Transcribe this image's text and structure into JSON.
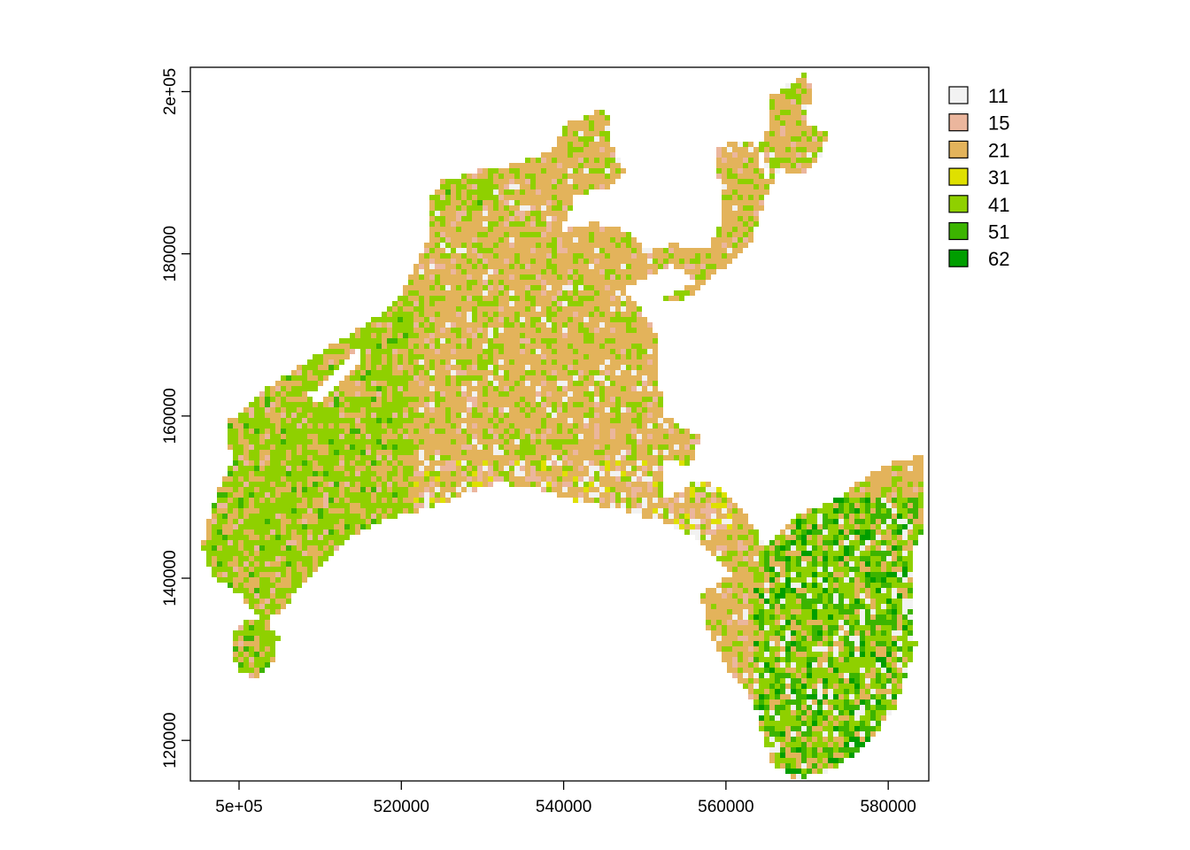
{
  "chart_data": {
    "type": "heatmap",
    "title": "",
    "xlabel": "",
    "ylabel": "",
    "xlim": [
      494000,
      585000
    ],
    "ylim": [
      115000,
      203000
    ],
    "x_ticks": [
      {
        "value": 500000,
        "label": "5e+05"
      },
      {
        "value": 520000,
        "label": "520000"
      },
      {
        "value": 540000,
        "label": "540000"
      },
      {
        "value": 560000,
        "label": "560000"
      },
      {
        "value": 580000,
        "label": "580000"
      }
    ],
    "y_ticks": [
      {
        "value": 120000,
        "label": "120000"
      },
      {
        "value": 140000,
        "label": "140000"
      },
      {
        "value": 160000,
        "label": "160000"
      },
      {
        "value": 180000,
        "label": "180000"
      },
      {
        "value": 200000,
        "label": "2e+05"
      }
    ],
    "grid": false,
    "legend_position": "right",
    "legend": [
      {
        "label": "11",
        "color": "#f2f2f2"
      },
      {
        "label": "15",
        "color": "#ebb69d"
      },
      {
        "label": "21",
        "color": "#e3b35b"
      },
      {
        "label": "31",
        "color": "#dfe000"
      },
      {
        "label": "41",
        "color": "#8fd000"
      },
      {
        "label": "51",
        "color": "#3cb400"
      },
      {
        "label": "62",
        "color": "#009e00"
      }
    ]
  }
}
